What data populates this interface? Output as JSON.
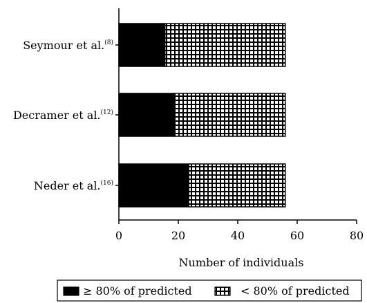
{
  "chart_data": {
    "type": "bar",
    "orientation": "horizontal",
    "stacked": true,
    "categories": [
      {
        "name": "Seymour et al.",
        "ref": "(8)"
      },
      {
        "name": "Decramer et al.",
        "ref": "(12)"
      },
      {
        "name": "Neder et al.",
        "ref": "(16)"
      }
    ],
    "series": [
      {
        "name": "≥ 80% of predicted",
        "values": [
          15.5,
          18.5,
          23.5
        ],
        "color": "#000000",
        "pattern": "solid"
      },
      {
        "name": "< 80% of predicted",
        "values": [
          40.5,
          37.5,
          32.5
        ],
        "color": "#000000",
        "pattern": "grid"
      }
    ],
    "xlabel": "Number of individuals",
    "ylabel": "",
    "xlim": [
      0,
      80
    ],
    "xticks": [
      0,
      20,
      40,
      60,
      80
    ],
    "grid": false,
    "legend_position": "bottom"
  }
}
